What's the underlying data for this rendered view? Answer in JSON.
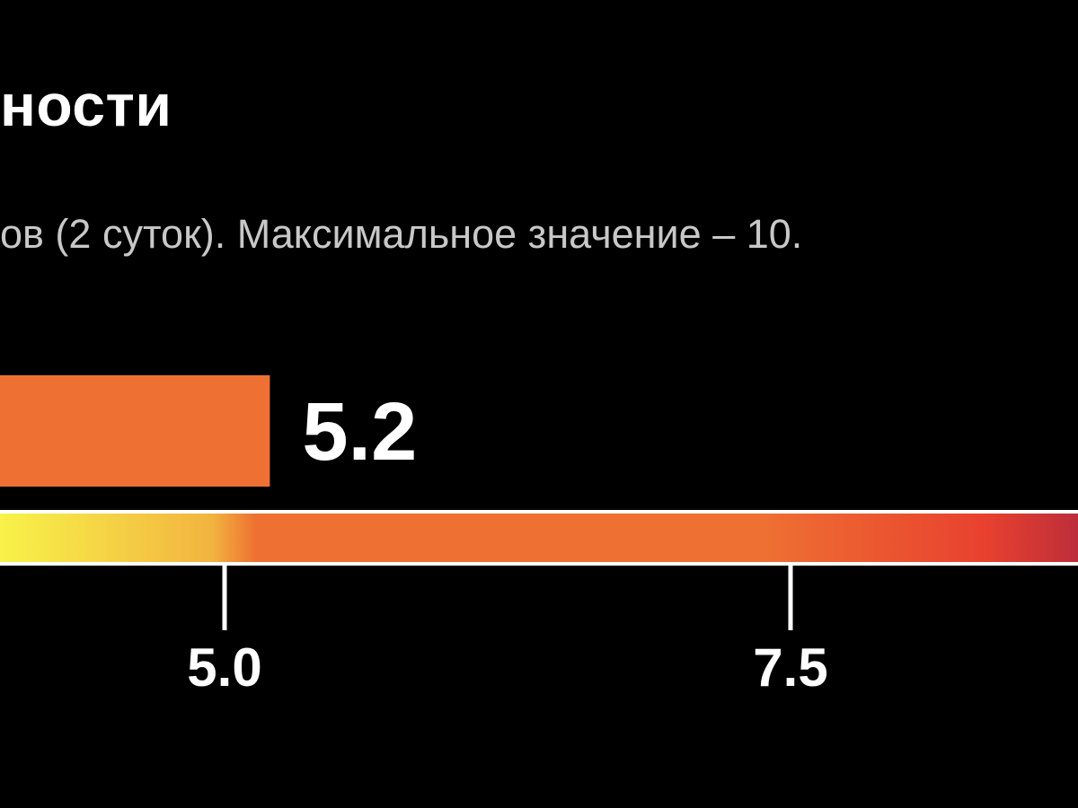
{
  "chart_data": {
    "type": "bar",
    "title": "ности",
    "subtitle": "ов (2 суток). Максимальное значение – 10.",
    "values": [
      5.2
    ],
    "value_label": "5.2",
    "scale": {
      "ticks": [
        {
          "value": 5.0,
          "label": "5.0"
        },
        {
          "value": 7.5,
          "label": "7.5"
        }
      ]
    },
    "colors": {
      "bar": "#ee7032",
      "background": "#000000",
      "text": "#ffffff",
      "subtitle": "#c8c8c8",
      "gradient": [
        "#f8f54a",
        "#f2b440",
        "#ee7032",
        "#ee7032",
        "#ee7032",
        "#e8412f",
        "#b52a3c"
      ]
    },
    "grid": false
  }
}
